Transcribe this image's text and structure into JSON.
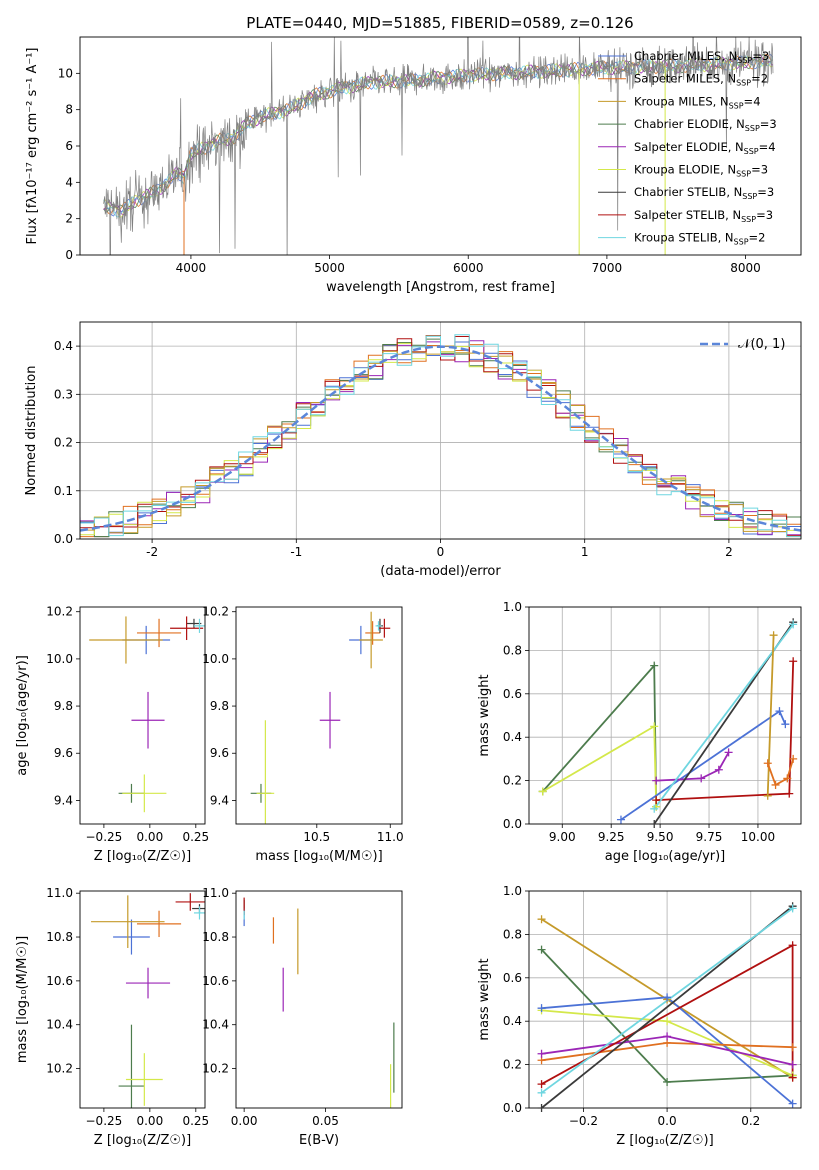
{
  "figure": {
    "title": "PLATE=0440, MJD=51885, FIBERID=0589, z=0.126"
  },
  "models": [
    {
      "name": "Chabrier MILES",
      "nssp": "3",
      "color": "#4c72d6"
    },
    {
      "name": "Salpeter MILES",
      "nssp": "2",
      "color": "#e07020"
    },
    {
      "name": "Kroupa MILES",
      "nssp": "4",
      "color": "#c59a2a"
    },
    {
      "name": "Chabrier ELODIE",
      "nssp": "3",
      "color": "#4d7c4d"
    },
    {
      "name": "Salpeter ELODIE",
      "nssp": "4",
      "color": "#9b26b6"
    },
    {
      "name": "Kroupa ELODIE",
      "nssp": "3",
      "color": "#d4e84a"
    },
    {
      "name": "Chabrier STELIB",
      "nssp": "3",
      "color": "#3a3a3a"
    },
    {
      "name": "Salpeter STELIB",
      "nssp": "3",
      "color": "#b01010"
    },
    {
      "name": "Kroupa STELIB",
      "nssp": "2",
      "color": "#6fd6e0"
    }
  ],
  "chart_data": [
    {
      "id": "spectrum",
      "type": "line",
      "xlabel": "wavelength [Angstrom, rest frame]",
      "ylabel": "Flux [fλ10⁻¹⁷ erg cm⁻² s⁻¹ A⁻¹]",
      "xlim": [
        3200,
        8400
      ],
      "ylim": [
        0,
        12
      ],
      "xticks": [
        4000,
        5000,
        6000,
        7000,
        8000
      ],
      "yticks": [
        0,
        2,
        4,
        6,
        8,
        10
      ],
      "data_color": "#808080",
      "continuum": {
        "x": [
          3360,
          3500,
          3600,
          3700,
          3800,
          3900,
          3950,
          4000,
          4100,
          4200,
          4300,
          4400,
          4500,
          4700,
          4900,
          5100,
          5300,
          5600,
          6000,
          6500,
          7000,
          7500,
          8000,
          8200
        ],
        "y": [
          2.7,
          2.4,
          3.0,
          3.3,
          3.8,
          4.5,
          4.3,
          5.6,
          5.9,
          6.3,
          6.4,
          7.2,
          7.6,
          8.0,
          8.8,
          9.2,
          9.5,
          9.6,
          9.9,
          10.1,
          10.3,
          10.4,
          10.6,
          10.7
        ]
      },
      "grid": false,
      "legend_position": "top-right"
    },
    {
      "id": "residuals",
      "type": "bar",
      "xlabel": "(data-model)/error",
      "ylabel": "Normed distribution",
      "xlim": [
        -2.5,
        2.5
      ],
      "ylim": [
        0,
        0.45
      ],
      "xticks": [
        -2,
        -1,
        0,
        1,
        2
      ],
      "yticks": [
        0.0,
        0.1,
        0.2,
        0.3,
        0.4
      ],
      "bin_width": 0.1,
      "reference_curve": {
        "label": "𝒩(0, 1)",
        "mu": 0,
        "sigma": 1,
        "color": "#5b86d9"
      },
      "grid": true,
      "legend_position": "top-right"
    },
    {
      "id": "z-age",
      "type": "scatter",
      "xlabel": "Z [log₁₀(Z/Z☉)]",
      "ylabel": "age  [log₁₀(age/yr)]",
      "xlim": [
        -0.38,
        0.3
      ],
      "ylim": [
        9.3,
        10.22
      ],
      "xticks": [
        -0.25,
        0.0,
        0.25
      ],
      "yticks": [
        9.4,
        9.6,
        9.8,
        10.0,
        10.2
      ],
      "points": [
        {
          "model": 0,
          "x": -0.02,
          "y": 10.08,
          "xerr": 0.13,
          "yerr": 0.06
        },
        {
          "model": 1,
          "x": 0.05,
          "y": 10.11,
          "xerr": 0.12,
          "yerr": 0.06
        },
        {
          "model": 3,
          "x": -0.1,
          "y": 9.43,
          "xerr": 0.07,
          "yerr": 0.04
        },
        {
          "model": 4,
          "x": -0.01,
          "y": 9.74,
          "xerr": 0.09,
          "yerr": 0.12
        },
        {
          "model": 5,
          "x": -0.03,
          "y": 9.43,
          "xerr": 0.12,
          "yerr": 0.08
        },
        {
          "model": 6,
          "x": 0.24,
          "y": 10.15,
          "xerr": 0.04,
          "yerr": 0.02
        },
        {
          "model": 7,
          "x": 0.2,
          "y": 10.13,
          "xerr": 0.09,
          "yerr": 0.05
        },
        {
          "model": 8,
          "x": 0.27,
          "y": 10.14,
          "xerr": 0.03,
          "yerr": 0.03
        },
        {
          "model": 2,
          "x": -0.13,
          "y": 10.08,
          "xerr": 0.2,
          "yerr": 0.1
        }
      ]
    },
    {
      "id": "mass-age",
      "type": "scatter",
      "xlabel": "mass [log₁₀(M/M☉)]",
      "ylabel": "",
      "xlim": [
        9.95,
        11.08
      ],
      "ylim": [
        9.3,
        10.22
      ],
      "xticks": [
        10.5,
        11.0
      ],
      "yticks": [
        9.4,
        9.6,
        9.8,
        10.0,
        10.2
      ],
      "points": [
        {
          "model": 0,
          "x": 10.8,
          "y": 10.08,
          "xerr": 0.08,
          "yerr": 0.06
        },
        {
          "model": 1,
          "x": 10.88,
          "y": 10.11,
          "xerr": 0.05,
          "yerr": 0.05
        },
        {
          "model": 3,
          "x": 10.12,
          "y": 9.43,
          "xerr": 0.07,
          "yerr": 0.04
        },
        {
          "model": 4,
          "x": 10.59,
          "y": 9.74,
          "xerr": 0.07,
          "yerr": 0.12
        },
        {
          "model": 5,
          "x": 10.15,
          "y": 9.43,
          "xerr": 0.06,
          "yerr": 0.31
        },
        {
          "model": 6,
          "x": 10.93,
          "y": 10.14,
          "xerr": 0.02,
          "yerr": 0.03
        },
        {
          "model": 7,
          "x": 10.96,
          "y": 10.13,
          "xerr": 0.04,
          "yerr": 0.04
        },
        {
          "model": 8,
          "x": 10.92,
          "y": 10.14,
          "xerr": 0.02,
          "yerr": 0.02
        },
        {
          "model": 2,
          "x": 10.87,
          "y": 10.08,
          "xerr": 0.08,
          "yerr": 0.12
        }
      ]
    },
    {
      "id": "age-weight",
      "type": "line",
      "xlabel": "age  [log₁₀(age/yr)]",
      "ylabel": "mass weight",
      "xlim": [
        8.83,
        10.22
      ],
      "ylim": [
        0,
        1
      ],
      "xticks": [
        9.0,
        9.25,
        9.5,
        9.75,
        10.0
      ],
      "yticks": [
        0.0,
        0.2,
        0.4,
        0.6,
        0.8,
        1.0
      ],
      "grid": true,
      "series": [
        {
          "model": 3,
          "x": [
            8.9,
            9.47,
            9.48
          ],
          "y": [
            0.15,
            0.73,
            0.08
          ]
        },
        {
          "model": 5,
          "x": [
            8.9,
            9.47,
            9.48
          ],
          "y": [
            0.15,
            0.45,
            0.08
          ]
        },
        {
          "model": 0,
          "x": [
            9.3,
            10.11,
            10.14
          ],
          "y": [
            0.02,
            0.52,
            0.46
          ]
        },
        {
          "model": 4,
          "x": [
            9.48,
            9.71,
            9.8,
            9.85
          ],
          "y": [
            0.2,
            0.21,
            0.25,
            0.33
          ]
        },
        {
          "model": 7,
          "x": [
            9.48,
            10.16,
            10.18
          ],
          "y": [
            0.11,
            0.14,
            0.75
          ]
        },
        {
          "model": 6,
          "x": [
            9.47,
            10.18
          ],
          "y": [
            0.0,
            0.93
          ]
        },
        {
          "model": 8,
          "x": [
            9.47,
            10.18
          ],
          "y": [
            0.07,
            0.92
          ]
        },
        {
          "model": 2,
          "x": [
            10.05,
            10.08
          ],
          "y": [
            0.13,
            0.87
          ]
        },
        {
          "model": 1,
          "x": [
            10.05,
            10.09,
            10.15,
            10.18
          ],
          "y": [
            0.28,
            0.18,
            0.21,
            0.3
          ]
        }
      ]
    },
    {
      "id": "z-mass",
      "type": "scatter",
      "xlabel": "Z [log₁₀(Z/Z☉)]",
      "ylabel": "mass [log₁₀(M/M☉)]",
      "xlim": [
        -0.38,
        0.3
      ],
      "ylim": [
        10.02,
        11.01
      ],
      "xticks": [
        -0.25,
        0.0,
        0.25
      ],
      "yticks": [
        10.2,
        10.4,
        10.6,
        10.8,
        11.0
      ],
      "points": [
        {
          "model": 0,
          "x": -0.1,
          "y": 10.8,
          "xerr": 0.1,
          "yerr": 0.08
        },
        {
          "model": 1,
          "x": 0.05,
          "y": 10.86,
          "xerr": 0.12,
          "yerr": 0.06
        },
        {
          "model": 3,
          "x": -0.1,
          "y": 10.12,
          "xerr": 0.07,
          "yerr": 0.28
        },
        {
          "model": 4,
          "x": -0.01,
          "y": 10.59,
          "xerr": 0.12,
          "yerr": 0.07
        },
        {
          "model": 5,
          "x": -0.03,
          "y": 10.15,
          "xerr": 0.1,
          "yerr": 0.12
        },
        {
          "model": 6,
          "x": 0.27,
          "y": 10.93,
          "xerr": 0.04,
          "yerr": 0.02
        },
        {
          "model": 7,
          "x": 0.22,
          "y": 10.96,
          "xerr": 0.08,
          "yerr": 0.04
        },
        {
          "model": 8,
          "x": 0.27,
          "y": 10.91,
          "xerr": 0.03,
          "yerr": 0.03
        },
        {
          "model": 2,
          "x": -0.12,
          "y": 10.87,
          "xerr": 0.2,
          "yerr": 0.12
        }
      ]
    },
    {
      "id": "ebv-mass",
      "type": "scatter",
      "xlabel": "E(B-V)",
      "ylabel": "",
      "xlim": [
        -0.005,
        0.097
      ],
      "ylim": [
        10.02,
        11.01
      ],
      "xticks": [
        0.0,
        0.05
      ],
      "yticks": [
        10.2,
        10.4,
        10.6,
        10.8,
        11.0
      ],
      "points": [
        {
          "model": 0,
          "x": 0.0,
          "y": 10.89,
          "xerr": 0,
          "yerr": 0.04
        },
        {
          "model": 1,
          "x": 0.018,
          "y": 10.83,
          "xerr": 0,
          "yerr": 0.06
        },
        {
          "model": 3,
          "x": 0.092,
          "y": 10.25,
          "xerr": 0,
          "yerr": 0.16
        },
        {
          "model": 4,
          "x": 0.024,
          "y": 10.56,
          "xerr": 0,
          "yerr": 0.1
        },
        {
          "model": 5,
          "x": 0.09,
          "y": 10.12,
          "xerr": 0,
          "yerr": 0.1
        },
        {
          "model": 6,
          "x": 0.0,
          "y": 10.95,
          "xerr": 0,
          "yerr": 0.02
        },
        {
          "model": 7,
          "x": 0.0,
          "y": 10.94,
          "xerr": 0,
          "yerr": 0.04
        },
        {
          "model": 8,
          "x": 0.0,
          "y": 10.9,
          "xerr": 0,
          "yerr": 0.02
        },
        {
          "model": 2,
          "x": 0.033,
          "y": 10.78,
          "xerr": 0,
          "yerr": 0.15
        }
      ]
    },
    {
      "id": "z-weight",
      "type": "line",
      "xlabel": "Z [log₁₀(Z/Z☉)]",
      "ylabel": "mass weight",
      "xlim": [
        -0.33,
        0.32
      ],
      "ylim": [
        0,
        1
      ],
      "xticks": [
        -0.2,
        0.0,
        0.2
      ],
      "yticks": [
        0.0,
        0.2,
        0.4,
        0.6,
        0.8,
        1.0
      ],
      "grid": true,
      "series": [
        {
          "model": 2,
          "x": [
            -0.3,
            0.0,
            0.3
          ],
          "y": [
            0.87,
            0.5,
            0.14
          ]
        },
        {
          "model": 3,
          "x": [
            -0.3,
            0.0,
            0.3
          ],
          "y": [
            0.73,
            0.12,
            0.15
          ]
        },
        {
          "model": 5,
          "x": [
            -0.3,
            0.0,
            0.3
          ],
          "y": [
            0.45,
            0.4,
            0.15
          ]
        },
        {
          "model": 0,
          "x": [
            -0.3,
            0.0,
            0.3
          ],
          "y": [
            0.46,
            0.51,
            0.02
          ]
        },
        {
          "model": 1,
          "x": [
            -0.3,
            0.0,
            0.3
          ],
          "y": [
            0.22,
            0.3,
            0.28
          ]
        },
        {
          "model": 4,
          "x": [
            -0.3,
            0.0,
            0.3
          ],
          "y": [
            0.25,
            0.33,
            0.2
          ]
        },
        {
          "model": 7,
          "x": [
            -0.3,
            0.3,
            0.3
          ],
          "y": [
            0.11,
            0.75,
            0.14
          ]
        },
        {
          "model": 6,
          "x": [
            -0.3,
            0.3
          ],
          "y": [
            0.0,
            0.93
          ]
        },
        {
          "model": 8,
          "x": [
            -0.3,
            0.3
          ],
          "y": [
            0.07,
            0.92
          ]
        }
      ]
    }
  ]
}
